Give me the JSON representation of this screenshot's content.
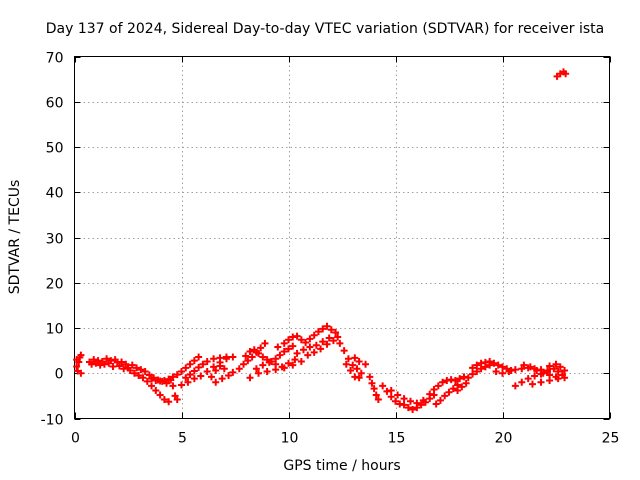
{
  "chart_data": {
    "type": "scatter",
    "title": "Day 137 of 2024, Sidereal Day-to-day VTEC variation (SDTVAR) for receiver ista",
    "xlabel": "GPS time / hours",
    "ylabel": "SDTVAR / TECUs",
    "xlim": [
      0,
      25
    ],
    "ylim": [
      -10,
      70
    ],
    "xticks": [
      0,
      5,
      10,
      15,
      20,
      25
    ],
    "yticks": [
      -10,
      0,
      10,
      20,
      30,
      40,
      50,
      60,
      70
    ],
    "grid": true,
    "marker": "+",
    "color": "#ff0000",
    "series": [
      {
        "name": "SDTVAR",
        "points": [
          [
            0.1,
            1.5
          ],
          [
            0.1,
            3.0
          ],
          [
            0.15,
            0.5
          ],
          [
            0.2,
            2.5
          ],
          [
            0.25,
            3.5
          ],
          [
            0.3,
            4.0
          ],
          [
            0.3,
            0.0
          ],
          [
            0.7,
            2.5
          ],
          [
            0.8,
            2.0
          ],
          [
            0.9,
            3.0
          ],
          [
            1.0,
            2.2
          ],
          [
            1.1,
            2.8
          ],
          [
            1.2,
            1.8
          ],
          [
            1.3,
            2.6
          ],
          [
            1.4,
            2.0
          ],
          [
            1.5,
            3.2
          ],
          [
            1.6,
            2.2
          ],
          [
            1.7,
            2.8
          ],
          [
            1.8,
            1.5
          ],
          [
            1.9,
            3.0
          ],
          [
            2.0,
            2.4
          ],
          [
            2.1,
            1.6
          ],
          [
            2.2,
            2.5
          ],
          [
            2.3,
            1.0
          ],
          [
            2.4,
            2.0
          ],
          [
            2.5,
            1.2
          ],
          [
            2.6,
            0.6
          ],
          [
            2.7,
            1.8
          ],
          [
            2.8,
            0.0
          ],
          [
            2.9,
            1.2
          ],
          [
            3.0,
            -0.5
          ],
          [
            3.1,
            0.8
          ],
          [
            3.2,
            -1.0
          ],
          [
            3.3,
            0.4
          ],
          [
            3.4,
            -1.8
          ],
          [
            3.5,
            -0.4
          ],
          [
            3.6,
            -2.8
          ],
          [
            3.7,
            -1.0
          ],
          [
            3.8,
            -3.8
          ],
          [
            3.9,
            -1.5
          ],
          [
            4.0,
            -4.8
          ],
          [
            4.1,
            -1.8
          ],
          [
            4.2,
            -5.8
          ],
          [
            4.3,
            -2.2
          ],
          [
            4.4,
            -6.3
          ],
          [
            4.5,
            -1.5
          ],
          [
            4.6,
            -2.8
          ],
          [
            4.7,
            -5.0
          ],
          [
            4.8,
            -5.8
          ],
          [
            3.6,
            -1.2
          ],
          [
            3.8,
            -1.6
          ],
          [
            4.0,
            -1.7
          ],
          [
            4.2,
            -1.6
          ],
          [
            4.4,
            -1.3
          ],
          [
            4.6,
            -0.8
          ],
          [
            4.8,
            -0.3
          ],
          [
            5.0,
            0.4
          ],
          [
            5.2,
            1.2
          ],
          [
            5.4,
            2.0
          ],
          [
            5.6,
            2.8
          ],
          [
            5.8,
            3.6
          ],
          [
            5.2,
            -1.0
          ],
          [
            5.4,
            -0.3
          ],
          [
            5.6,
            0.5
          ],
          [
            5.8,
            1.3
          ],
          [
            6.0,
            2.0
          ],
          [
            5.0,
            -2.6
          ],
          [
            5.3,
            -2.0
          ],
          [
            5.6,
            -1.2
          ],
          [
            5.9,
            -0.6
          ],
          [
            6.2,
            0.4
          ],
          [
            6.5,
            1.4
          ],
          [
            6.8,
            2.4
          ],
          [
            7.1,
            3.2
          ],
          [
            6.2,
            2.6
          ],
          [
            6.5,
            3.2
          ],
          [
            6.8,
            3.4
          ],
          [
            7.1,
            3.6
          ],
          [
            7.4,
            3.6
          ],
          [
            6.6,
            -2.0
          ],
          [
            6.9,
            -1.2
          ],
          [
            7.2,
            -0.5
          ],
          [
            7.4,
            0.2
          ],
          [
            6.4,
            -0.8
          ],
          [
            6.6,
            0.6
          ],
          [
            6.8,
            1.6
          ],
          [
            7.0,
            1.0
          ],
          [
            7.7,
            1.0
          ],
          [
            7.9,
            2.0
          ],
          [
            8.1,
            2.8
          ],
          [
            8.3,
            3.6
          ],
          [
            8.5,
            4.6
          ],
          [
            8.7,
            5.6
          ],
          [
            8.9,
            6.6
          ],
          [
            8.0,
            3.8
          ],
          [
            8.2,
            4.8
          ],
          [
            8.4,
            5.2
          ],
          [
            8.6,
            4.4
          ],
          [
            8.8,
            3.6
          ],
          [
            9.0,
            3.0
          ],
          [
            9.2,
            2.6
          ],
          [
            9.4,
            3.2
          ],
          [
            9.6,
            4.0
          ],
          [
            9.8,
            4.8
          ],
          [
            10.0,
            5.4
          ],
          [
            10.2,
            6.0
          ],
          [
            8.5,
            1.0
          ],
          [
            8.8,
            1.8
          ],
          [
            9.1,
            2.4
          ],
          [
            9.4,
            2.0
          ],
          [
            9.7,
            1.4
          ],
          [
            10.0,
            2.2
          ],
          [
            10.3,
            3.0
          ],
          [
            8.2,
            -1.0
          ],
          [
            8.6,
            0.0
          ],
          [
            9.0,
            0.4
          ],
          [
            9.4,
            0.8
          ],
          [
            9.8,
            1.2
          ],
          [
            10.2,
            1.8
          ],
          [
            10.6,
            2.6
          ],
          [
            9.5,
            5.8
          ],
          [
            9.8,
            6.6
          ],
          [
            10.0,
            7.4
          ],
          [
            10.2,
            8.0
          ],
          [
            10.4,
            8.2
          ],
          [
            10.6,
            7.4
          ],
          [
            10.8,
            6.8
          ],
          [
            11.0,
            7.6
          ],
          [
            11.2,
            8.4
          ],
          [
            11.4,
            9.2
          ],
          [
            11.6,
            9.8
          ],
          [
            11.8,
            10.4
          ],
          [
            12.0,
            9.6
          ],
          [
            12.2,
            9.0
          ],
          [
            10.4,
            4.4
          ],
          [
            10.7,
            5.2
          ],
          [
            11.0,
            5.8
          ],
          [
            11.3,
            6.2
          ],
          [
            11.6,
            7.0
          ],
          [
            11.9,
            7.8
          ],
          [
            10.9,
            4.0
          ],
          [
            11.2,
            4.6
          ],
          [
            11.5,
            5.4
          ],
          [
            11.8,
            6.4
          ],
          [
            12.1,
            7.2
          ],
          [
            12.3,
            8.0
          ],
          [
            12.4,
            6.6
          ],
          [
            12.6,
            5.0
          ],
          [
            12.8,
            3.2
          ],
          [
            13.0,
            1.8
          ],
          [
            13.2,
            1.0
          ],
          [
            13.4,
            0.0
          ],
          [
            13.1,
            3.4
          ],
          [
            13.3,
            2.6
          ],
          [
            13.6,
            2.0
          ],
          [
            12.7,
            2.0
          ],
          [
            12.9,
            0.6
          ],
          [
            13.1,
            -0.8
          ],
          [
            13.3,
            -1.0
          ],
          [
            13.8,
            -0.8
          ],
          [
            13.9,
            -2.2
          ],
          [
            14.0,
            -3.4
          ],
          [
            14.1,
            -4.8
          ],
          [
            14.2,
            -5.8
          ],
          [
            14.4,
            -2.8
          ],
          [
            14.6,
            -4.0
          ],
          [
            14.8,
            -5.2
          ],
          [
            15.0,
            -6.2
          ],
          [
            15.2,
            -6.8
          ],
          [
            15.4,
            -7.0
          ],
          [
            14.8,
            -3.8
          ],
          [
            15.1,
            -4.8
          ],
          [
            15.4,
            -5.6
          ],
          [
            15.7,
            -6.2
          ],
          [
            16.0,
            -6.6
          ],
          [
            16.3,
            -6.0
          ],
          [
            15.6,
            -7.6
          ],
          [
            15.8,
            -8.0
          ],
          [
            16.0,
            -7.6
          ],
          [
            16.2,
            -7.0
          ],
          [
            16.4,
            -6.4
          ],
          [
            16.6,
            -5.6
          ],
          [
            16.8,
            -4.8
          ],
          [
            16.9,
            -6.8
          ],
          [
            17.1,
            -6.0
          ],
          [
            17.3,
            -5.0
          ],
          [
            17.5,
            -4.2
          ],
          [
            17.7,
            -3.4
          ],
          [
            17.9,
            -2.6
          ],
          [
            16.6,
            -4.6
          ],
          [
            16.8,
            -3.6
          ],
          [
            17.0,
            -2.8
          ],
          [
            17.2,
            -2.0
          ],
          [
            17.4,
            -1.6
          ],
          [
            17.6,
            -1.4
          ],
          [
            17.8,
            -1.6
          ],
          [
            18.0,
            -1.2
          ],
          [
            18.2,
            -0.8
          ],
          [
            17.9,
            -3.8
          ],
          [
            18.1,
            -3.0
          ],
          [
            18.3,
            -2.2
          ],
          [
            18.4,
            -1.0
          ],
          [
            18.6,
            -0.2
          ],
          [
            18.8,
            0.4
          ],
          [
            19.0,
            1.0
          ],
          [
            19.2,
            1.4
          ],
          [
            19.4,
            1.8
          ],
          [
            18.6,
            1.2
          ],
          [
            18.8,
            1.8
          ],
          [
            19.0,
            2.2
          ],
          [
            19.2,
            2.4
          ],
          [
            19.4,
            2.6
          ],
          [
            19.6,
            2.2
          ],
          [
            19.8,
            1.8
          ],
          [
            20.0,
            1.4
          ],
          [
            20.2,
            1.0
          ],
          [
            20.4,
            0.6
          ],
          [
            19.7,
            0.4
          ],
          [
            20.0,
            0.0
          ],
          [
            20.3,
            0.4
          ],
          [
            20.6,
            0.8
          ],
          [
            20.9,
            1.0
          ],
          [
            21.2,
            1.2
          ],
          [
            21.5,
            1.0
          ],
          [
            21.8,
            0.8
          ],
          [
            22.1,
            0.6
          ],
          [
            20.6,
            -2.8
          ],
          [
            20.9,
            -2.0
          ],
          [
            21.2,
            -1.2
          ],
          [
            21.5,
            -0.6
          ],
          [
            21.8,
            -0.2
          ],
          [
            22.1,
            0.2
          ],
          [
            21.0,
            1.8
          ],
          [
            21.3,
            1.4
          ],
          [
            21.6,
            0.6
          ],
          [
            21.9,
            0.0
          ],
          [
            22.2,
            -0.4
          ],
          [
            22.5,
            -0.8
          ],
          [
            22.2,
            1.6
          ],
          [
            22.4,
            1.0
          ],
          [
            22.6,
            0.4
          ],
          [
            22.8,
            -0.4
          ],
          [
            22.9,
            -1.0
          ],
          [
            22.5,
            2.0
          ],
          [
            22.7,
            1.4
          ],
          [
            22.9,
            0.6
          ],
          [
            21.4,
            -2.4
          ],
          [
            21.8,
            -2.0
          ],
          [
            22.2,
            -1.6
          ],
          [
            22.6,
            -1.2
          ],
          [
            22.55,
            65.6
          ],
          [
            22.7,
            66.2
          ],
          [
            22.85,
            66.6
          ],
          [
            22.95,
            66.2
          ]
        ]
      }
    ]
  }
}
